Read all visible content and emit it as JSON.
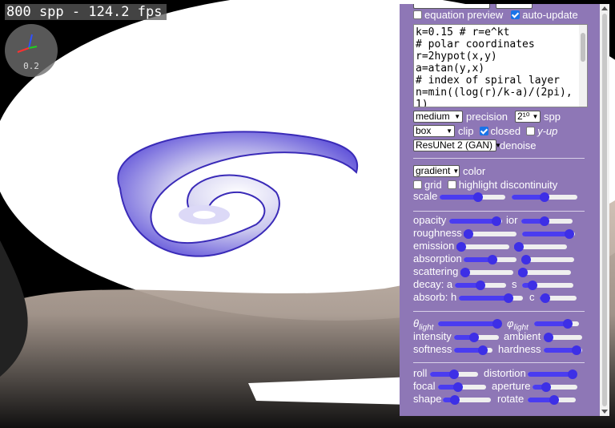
{
  "overlay": {
    "stats": "800 spp - 124.2 fps",
    "axis_value": "0.2"
  },
  "colors": {
    "panel": "#8e77b6",
    "slider": "#3d2fe6",
    "accent": "#1a73e8"
  },
  "panel": {
    "equation_preview": {
      "label": "equation preview",
      "checked": false
    },
    "auto_update": {
      "label": "auto-update",
      "checked": true
    },
    "code_lines": [
      "k=0.15 # r=e^kt",
      "# polar coordinates",
      "r=2hypot(x,y)",
      "a=atan(y,x)",
      "# index of spiral layer",
      "n=min((log(r)/k-a)/(2pi),",
      "1)"
    ],
    "precision": {
      "value": "medium",
      "label": "precision"
    },
    "spp": {
      "value": "2¹⁰",
      "label": "spp"
    },
    "clip": {
      "value": "box",
      "label": "clip"
    },
    "closed": {
      "label": "closed",
      "checked": true
    },
    "y_up": {
      "label": "y-up",
      "checked": false
    },
    "denoise": {
      "value": "ResUNet 2 (GAN)",
      "label": "denoise"
    },
    "color": {
      "value": "gradient",
      "label": "color"
    },
    "grid": {
      "label": "grid",
      "checked": false
    },
    "highlight": {
      "label": "highlight discontinuity",
      "checked": false
    },
    "sliders": {
      "scale": {
        "label": "scale",
        "value": 0.58
      },
      "scale2": {
        "value": 0.5
      },
      "opacity": {
        "label": "opacity",
        "value": 0.9
      },
      "ior": {
        "label": "ior",
        "value": 0.45
      },
      "roughness": {
        "label": "roughness",
        "value": 0.05
      },
      "roughness2": {
        "value": 0.9
      },
      "emission": {
        "label": "emission",
        "value": 0.05
      },
      "emission2": {
        "value": 0.05
      },
      "absorption": {
        "label": "absorption",
        "value": 0.55
      },
      "absorption2": {
        "value": 0.08
      },
      "scattering": {
        "label": "scattering",
        "value": 0.05
      },
      "scattering2": {
        "value": 0.05
      },
      "decay_a": {
        "label": "decay: a",
        "value": 0.5
      },
      "decay_s": {
        "label": "s",
        "value": 0.2
      },
      "absorb_h": {
        "label": "absorb: h",
        "value": 0.78
      },
      "absorb_c": {
        "label": "c",
        "value": 0.15
      },
      "theta": {
        "label": "θlight",
        "value": 0.95
      },
      "phi": {
        "label": "φlight",
        "value": 0.75
      },
      "intensity": {
        "label": "intensity",
        "value": 0.45
      },
      "ambient": {
        "label": "ambient",
        "value": 0.1
      },
      "softness": {
        "label": "softness",
        "value": 0.75
      },
      "hardness": {
        "label": "hardness",
        "value": 0.85
      },
      "roll": {
        "label": "roll",
        "value": 0.5
      },
      "distortion": {
        "label": "distortion",
        "value": 0.9
      },
      "focal": {
        "label": "focal",
        "value": 0.42
      },
      "aperture": {
        "label": "aperture",
        "value": 0.3
      },
      "shape": {
        "label": "shape",
        "value": 0.25
      },
      "rotate": {
        "label": "rotate",
        "value": 0.55
      }
    }
  }
}
